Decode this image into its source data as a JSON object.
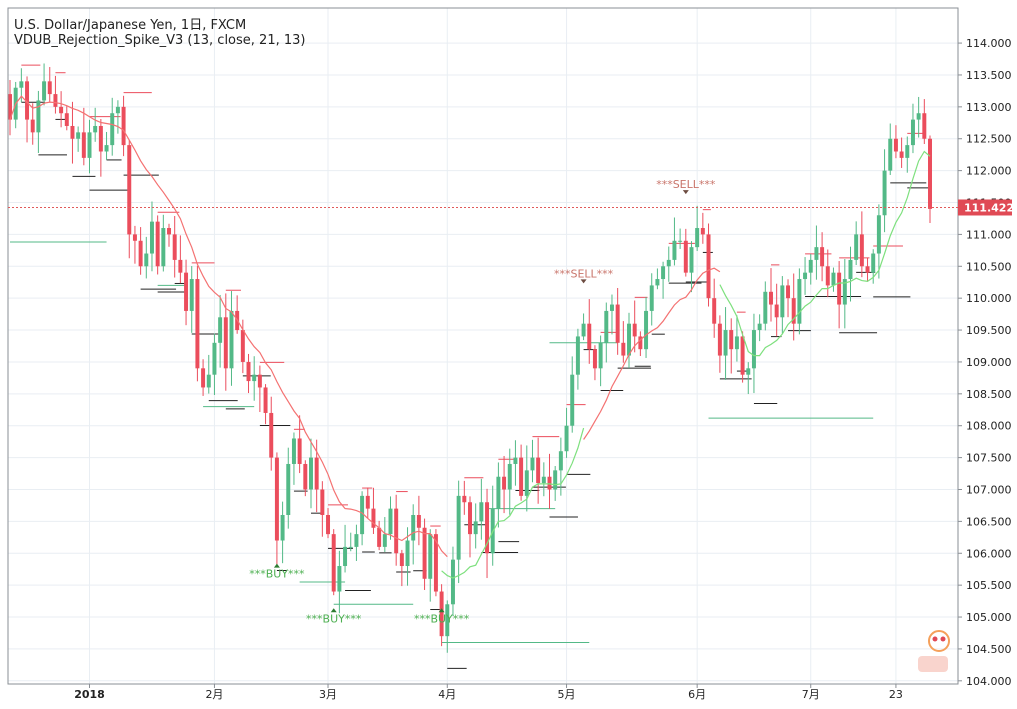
{
  "header": {
    "title": "U.S. Dollar/Japanese Yen, 1日, FXCM",
    "indicator": "VDUB_Rejection_Spike_V3 (13, close, 21, 13)"
  },
  "chart_data": {
    "type": "candlestick",
    "symbol": "USDJPY",
    "y_ticks": [
      "114.000",
      "113.500",
      "113.000",
      "112.500",
      "112.000",
      "111.500",
      "111.000",
      "110.500",
      "110.000",
      "109.500",
      "109.000",
      "108.500",
      "108.000",
      "107.500",
      "107.000",
      "106.500",
      "106.000",
      "105.500",
      "105.000",
      "104.500",
      "104.000"
    ],
    "ylim": [
      103.95,
      114.55
    ],
    "x_ticks": [
      {
        "label": "2018",
        "index": 14
      },
      {
        "label": "2月",
        "index": 36
      },
      {
        "label": "3月",
        "index": 56
      },
      {
        "label": "4月",
        "index": 77
      },
      {
        "label": "5月",
        "index": 98
      },
      {
        "label": "6月",
        "index": 121
      },
      {
        "label": "7月",
        "index": 141
      },
      {
        "label": "23",
        "index": 156
      }
    ],
    "last_price": "111.422",
    "candles_close": [
      112.8,
      113.3,
      113.4,
      112.8,
      112.6,
      113.1,
      113.4,
      113.2,
      113.0,
      112.9,
      112.7,
      112.5,
      112.6,
      112.2,
      112.6,
      112.7,
      112.3,
      112.4,
      112.9,
      113.0,
      112.4,
      111.0,
      110.9,
      110.5,
      110.7,
      111.2,
      110.5,
      111.1,
      111.0,
      110.6,
      110.4,
      109.8,
      110.3,
      108.9,
      108.6,
      108.8,
      109.3,
      109.7,
      108.9,
      109.8,
      109.5,
      109.0,
      108.7,
      108.8,
      108.6,
      108.2,
      107.5,
      106.2,
      106.6,
      107.4,
      107.8,
      107.4,
      107.0,
      107.5,
      107.0,
      106.6,
      106.3,
      105.4,
      105.8,
      106.1,
      106.1,
      106.3,
      106.9,
      106.7,
      106.4,
      106.1,
      106.3,
      106.7,
      106.0,
      105.8,
      106.2,
      106.6,
      106.4,
      105.6,
      106.3,
      105.4,
      104.7,
      105.2,
      105.9,
      106.9,
      106.8,
      106.3,
      106.5,
      106.8,
      106.0,
      106.7,
      107.2,
      107.0,
      107.4,
      107.5,
      106.9,
      107.3,
      107.5,
      107.1,
      107.2,
      107.0,
      107.3,
      107.6,
      108.0,
      108.8,
      109.4,
      109.6,
      109.2,
      108.9,
      109.3,
      109.8,
      109.9,
      109.3,
      109.1,
      109.6,
      109.4,
      109.2,
      109.8,
      110.2,
      110.3,
      110.5,
      110.6,
      110.9,
      110.9,
      110.4,
      110.8,
      111.1,
      111.0,
      110.0,
      109.6,
      109.1,
      109.5,
      109.2,
      109.4,
      108.8,
      108.9,
      109.5,
      109.6,
      110.1,
      109.9,
      109.7,
      110.2,
      110.0,
      109.6,
      110.3,
      110.4,
      110.6,
      110.8,
      110.5,
      110.2,
      110.4,
      109.9,
      110.3,
      110.6,
      111.0,
      110.5,
      110.4,
      110.7,
      111.3,
      112.0,
      112.5,
      112.3,
      112.2,
      112.4,
      112.8,
      112.9,
      112.5,
      111.4
    ],
    "signals": [
      {
        "text": "***BUY***",
        "type": "buy",
        "index": 47,
        "price": 105.9
      },
      {
        "text": "***BUY***",
        "type": "buy",
        "index": 57,
        "price": 105.2
      },
      {
        "text": "***BUY***",
        "type": "buy",
        "index": 76,
        "price": 105.2
      },
      {
        "text": "***SELL***",
        "type": "sell",
        "index": 101,
        "price": 110.2
      },
      {
        "text": "***SELL***",
        "type": "sell",
        "index": 119,
        "price": 111.6
      }
    ],
    "colors": {
      "up": "#53b987",
      "down": "#eb4d5c",
      "ma_red": "#f47272",
      "ma_green": "#7ee07e",
      "grid": "#e9eef3",
      "price_line": "#e05a5a",
      "buy_text": "#4caf50",
      "sell_text": "#c9756b"
    }
  }
}
